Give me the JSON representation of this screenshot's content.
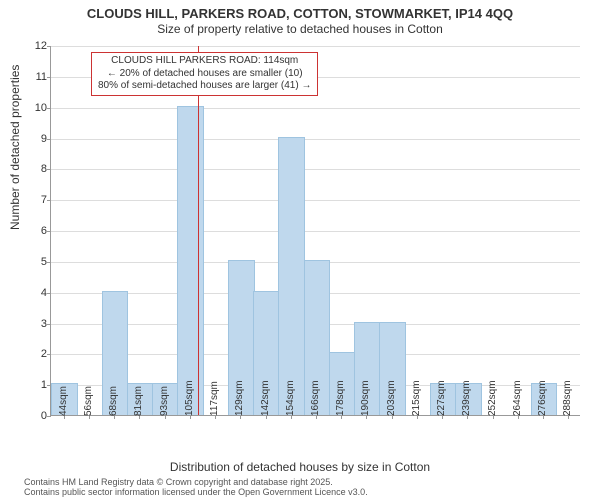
{
  "title_line1": "CLOUDS HILL, PARKERS ROAD, COTTON, STOWMARKET, IP14 4QQ",
  "title_line2": "Size of property relative to detached houses in Cotton",
  "ylabel": "Number of detached properties",
  "xlabel": "Distribution of detached houses by size in Cotton",
  "footer_line1": "Contains HM Land Registry data © Crown copyright and database right 2025.",
  "footer_line2": "Contains public sector information licensed under the Open Government Licence v3.0.",
  "chart": {
    "ylim": [
      0,
      12
    ],
    "ytick_step": 1,
    "bar_color": "#bfd8ed",
    "bar_stroke": "#9fc4e0",
    "background": "#ffffff",
    "grid_color": "#dddddd",
    "axis_color": "#999999",
    "marker": {
      "x_sqm": 114,
      "color": "#cc3333"
    },
    "annotation": {
      "border_color": "#cc3333",
      "lines": [
        "CLOUDS HILL PARKERS ROAD: 114sqm",
        "← 20% of detached houses are smaller (10)",
        "80% of semi-detached houses are larger (41) →"
      ]
    },
    "x_start": 44,
    "x_step": 12,
    "categories": [
      "44sqm",
      "56sqm",
      "68sqm",
      "81sqm",
      "93sqm",
      "105sqm",
      "117sqm",
      "129sqm",
      "142sqm",
      "154sqm",
      "166sqm",
      "178sqm",
      "190sqm",
      "203sqm",
      "215sqm",
      "227sqm",
      "239sqm",
      "252sqm",
      "264sqm",
      "276sqm",
      "288sqm"
    ],
    "values": [
      1,
      0,
      4,
      1,
      1,
      10,
      0,
      5,
      4,
      9,
      5,
      2,
      3,
      3,
      0,
      1,
      1,
      0,
      0,
      1,
      0
    ]
  }
}
